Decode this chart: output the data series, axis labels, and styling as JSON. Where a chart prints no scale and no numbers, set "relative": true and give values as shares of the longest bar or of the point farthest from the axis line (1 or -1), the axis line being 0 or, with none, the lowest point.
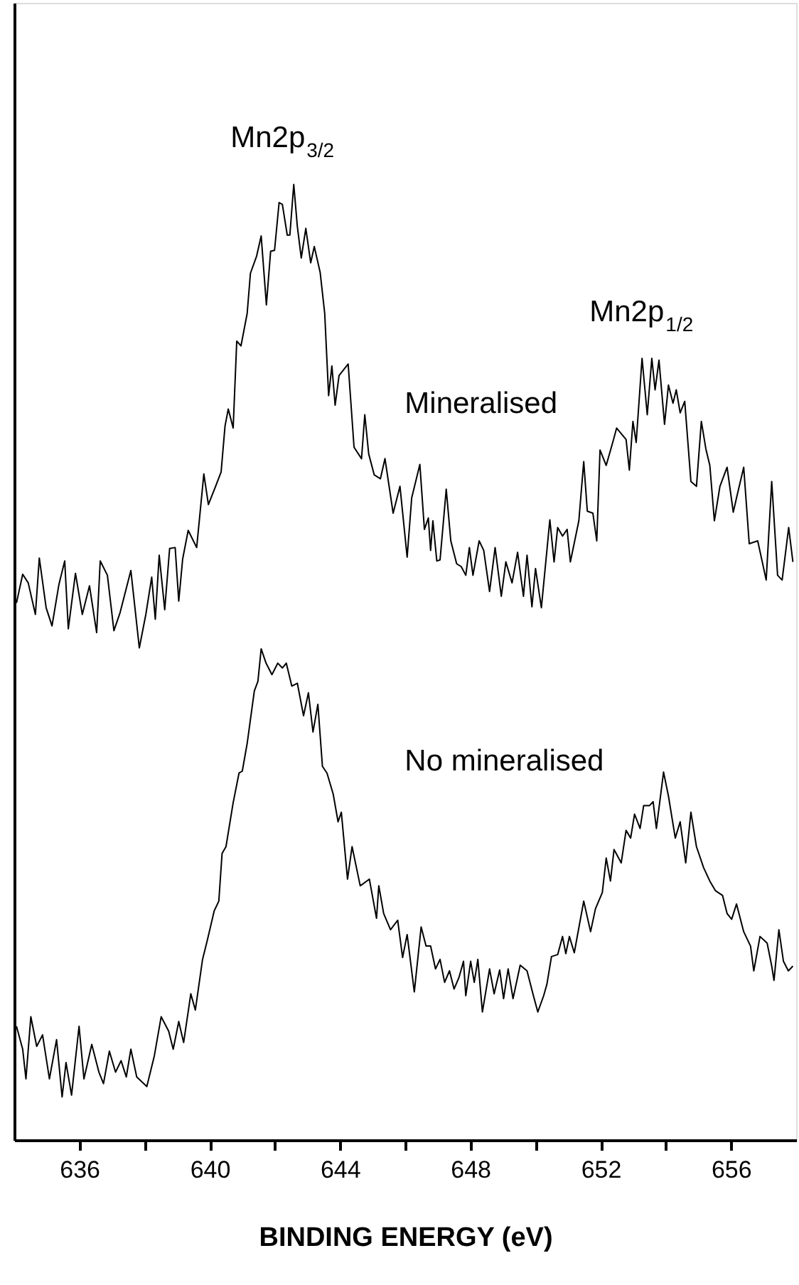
{
  "chart_data": {
    "type": "line",
    "relative": true,
    "xlabel": "BINDING ENERGY (eV)",
    "xlim": [
      634,
      658
    ],
    "xticks": [
      636,
      {
        "value": 638,
        "label": null
      },
      640,
      {
        "value": 642,
        "label": null
      },
      644,
      {
        "value": 646,
        "label": null
      },
      648,
      {
        "value": 650,
        "label": null
      },
      652,
      {
        "value": 654,
        "label": null
      },
      656
    ],
    "grid": false,
    "marker": "none",
    "line_style": "solid",
    "tick_labels": "x",
    "annotations": [
      {
        "text": "Mn2p$_{3/2}$",
        "x": 642.58,
        "y": 1.0
      },
      {
        "text": "Mn2p$_{1/2}$",
        "x": 653.6,
        "y": 0.818
      }
    ],
    "series": [
      {
        "name": "Mineralised",
        "color": "#000000",
        "x": [
          634.07,
          634.26,
          634.43,
          634.65,
          634.77,
          634.98,
          635.16,
          635.37,
          635.55,
          635.66,
          635.88,
          636.09,
          636.31,
          636.53,
          636.64,
          636.86,
          637.06,
          637.25,
          637.58,
          637.84,
          638.04,
          638.22,
          638.33,
          638.45,
          638.62,
          638.77,
          638.94,
          639.05,
          639.17,
          639.34,
          639.6,
          639.82,
          639.96,
          640.18,
          640.35,
          640.47,
          640.57,
          640.72,
          640.83,
          640.96,
          641.15,
          641.25,
          641.44,
          641.58,
          641.74,
          641.87,
          641.99,
          642.13,
          642.23,
          642.38,
          642.46,
          642.58,
          642.69,
          642.81,
          642.95,
          643.1,
          643.21,
          643.39,
          643.53,
          643.65,
          643.75,
          643.85,
          643.97,
          644.25,
          644.43,
          644.66,
          644.76,
          644.88,
          645.05,
          645.24,
          645.38,
          645.63,
          645.84,
          646.06,
          646.2,
          646.45,
          646.59,
          646.71,
          646.78,
          646.85,
          646.97,
          647.07,
          647.26,
          647.4,
          647.58,
          647.72,
          647.86,
          647.97,
          648.08,
          648.27,
          648.41,
          648.59,
          648.76,
          648.95,
          649.09,
          649.28,
          649.45,
          649.63,
          649.74,
          649.89,
          650.0,
          650.18,
          650.44,
          650.57,
          650.68,
          650.83,
          650.97,
          651.07,
          651.33,
          651.48,
          651.59,
          651.76,
          651.88,
          651.98,
          652.17,
          652.37,
          652.49,
          652.78,
          652.88,
          652.99,
          653.09,
          653.27,
          653.43,
          653.57,
          653.67,
          653.79,
          653.96,
          654.08,
          654.22,
          654.32,
          654.44,
          654.58,
          654.77,
          654.94,
          655.09,
          655.23,
          655.35,
          655.49,
          655.66,
          655.88,
          656.07,
          656.17,
          656.39,
          656.56,
          656.82,
          657.08,
          657.25,
          657.43,
          657.57,
          657.77,
          657.9
        ],
        "values": [
          0.562,
          0.592,
          0.583,
          0.55,
          0.609,
          0.557,
          0.538,
          0.581,
          0.606,
          0.535,
          0.593,
          0.55,
          0.58,
          0.531,
          0.606,
          0.591,
          0.533,
          0.552,
          0.596,
          0.515,
          0.55,
          0.589,
          0.545,
          0.612,
          0.555,
          0.619,
          0.62,
          0.564,
          0.608,
          0.638,
          0.62,
          0.697,
          0.665,
          0.684,
          0.699,
          0.747,
          0.765,
          0.745,
          0.836,
          0.831,
          0.865,
          0.907,
          0.925,
          0.946,
          0.874,
          0.93,
          0.931,
          0.981,
          0.979,
          0.947,
          0.947,
          1.0,
          0.956,
          0.923,
          0.954,
          0.918,
          0.935,
          0.908,
          0.865,
          0.779,
          0.81,
          0.769,
          0.8,
          0.812,
          0.725,
          0.713,
          0.759,
          0.718,
          0.696,
          0.692,
          0.713,
          0.656,
          0.684,
          0.61,
          0.672,
          0.707,
          0.639,
          0.651,
          0.617,
          0.648,
          0.606,
          0.607,
          0.681,
          0.627,
          0.603,
          0.6,
          0.591,
          0.62,
          0.591,
          0.627,
          0.617,
          0.574,
          0.62,
          0.569,
          0.605,
          0.583,
          0.615,
          0.569,
          0.612,
          0.558,
          0.598,
          0.557,
          0.649,
          0.605,
          0.641,
          0.632,
          0.639,
          0.605,
          0.648,
          0.71,
          0.658,
          0.656,
          0.627,
          0.722,
          0.706,
          0.73,
          0.745,
          0.733,
          0.701,
          0.752,
          0.73,
          0.818,
          0.759,
          0.818,
          0.785,
          0.816,
          0.749,
          0.79,
          0.771,
          0.785,
          0.761,
          0.773,
          0.689,
          0.684,
          0.752,
          0.723,
          0.706,
          0.648,
          0.684,
          0.704,
          0.657,
          0.672,
          0.704,
          0.624,
          0.627,
          0.586,
          0.689,
          0.591,
          0.586,
          0.641,
          0.605
        ]
      },
      {
        "name": "No mineralised",
        "color": "#000000",
        "x": [
          634.07,
          634.26,
          634.36,
          634.51,
          634.69,
          634.87,
          635.08,
          635.3,
          635.47,
          635.59,
          635.76,
          635.99,
          636.14,
          636.38,
          636.6,
          636.74,
          636.92,
          637.11,
          637.28,
          637.44,
          637.58,
          637.76,
          638.07,
          638.3,
          638.51,
          638.74,
          638.88,
          639.05,
          639.2,
          639.42,
          639.56,
          639.78,
          639.92,
          640.14,
          640.28,
          640.38,
          640.5,
          640.72,
          640.9,
          641.0,
          641.15,
          641.37,
          641.48,
          641.58,
          641.73,
          641.91,
          642.09,
          642.23,
          642.35,
          642.52,
          642.69,
          642.88,
          643.03,
          643.17,
          643.32,
          643.46,
          643.6,
          643.79,
          643.94,
          644.04,
          644.23,
          644.37,
          644.62,
          644.9,
          645.12,
          645.19,
          645.34,
          645.55,
          645.77,
          645.92,
          646.06,
          646.28,
          646.49,
          646.64,
          646.78,
          646.93,
          647.07,
          647.21,
          647.36,
          647.5,
          647.65,
          647.79,
          647.86,
          648.01,
          648.12,
          648.23,
          648.37,
          648.59,
          648.73,
          648.9,
          649.02,
          649.16,
          649.31,
          649.53,
          649.74,
          649.92,
          650.07,
          650.25,
          650.35,
          650.49,
          650.68,
          650.83,
          650.93,
          651.04,
          651.19,
          651.48,
          651.69,
          651.84,
          652.05,
          652.17,
          652.3,
          652.41,
          652.63,
          652.78,
          652.92,
          653.04,
          653.21,
          653.32,
          653.5,
          653.61,
          653.71,
          653.93,
          654.08,
          654.29,
          654.44,
          654.61,
          654.77,
          654.94,
          655.16,
          655.35,
          655.52,
          655.74,
          655.88,
          656.02,
          656.17,
          656.39,
          656.6,
          656.7,
          656.89,
          657.11,
          657.25,
          657.32,
          657.47,
          657.61,
          657.76,
          657.9
        ],
        "values": [
          0.119,
          0.095,
          0.064,
          0.129,
          0.098,
          0.11,
          0.064,
          0.105,
          0.045,
          0.081,
          0.047,
          0.119,
          0.064,
          0.1,
          0.071,
          0.059,
          0.093,
          0.071,
          0.083,
          0.066,
          0.095,
          0.066,
          0.056,
          0.088,
          0.129,
          0.114,
          0.095,
          0.124,
          0.102,
          0.153,
          0.136,
          0.189,
          0.208,
          0.24,
          0.25,
          0.3,
          0.307,
          0.353,
          0.384,
          0.386,
          0.415,
          0.47,
          0.48,
          0.514,
          0.499,
          0.487,
          0.499,
          0.494,
          0.499,
          0.475,
          0.478,
          0.444,
          0.468,
          0.427,
          0.456,
          0.391,
          0.384,
          0.362,
          0.333,
          0.343,
          0.273,
          0.307,
          0.266,
          0.273,
          0.232,
          0.266,
          0.237,
          0.22,
          0.23,
          0.191,
          0.215,
          0.155,
          0.223,
          0.203,
          0.203,
          0.179,
          0.189,
          0.165,
          0.177,
          0.158,
          0.17,
          0.187,
          0.151,
          0.187,
          0.165,
          0.189,
          0.134,
          0.179,
          0.153,
          0.178,
          0.148,
          0.179,
          0.148,
          0.183,
          0.177,
          0.153,
          0.134,
          0.151,
          0.163,
          0.192,
          0.194,
          0.213,
          0.195,
          0.213,
          0.196,
          0.25,
          0.218,
          0.242,
          0.259,
          0.295,
          0.271,
          0.304,
          0.29,
          0.324,
          0.316,
          0.341,
          0.326,
          0.35,
          0.35,
          0.354,
          0.326,
          0.385,
          0.36,
          0.316,
          0.333,
          0.29,
          0.343,
          0.307,
          0.285,
          0.271,
          0.261,
          0.256,
          0.237,
          0.231,
          0.247,
          0.218,
          0.203,
          0.177,
          0.213,
          0.206,
          0.182,
          0.167,
          0.22,
          0.187,
          0.177,
          0.182
        ]
      }
    ]
  }
}
